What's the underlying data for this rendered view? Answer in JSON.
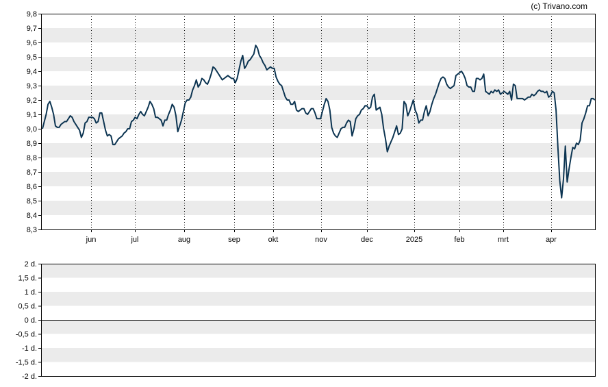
{
  "credit": "(c) Trivano.com",
  "chart_data": [
    {
      "type": "line",
      "ylim": [
        8.3,
        9.8
      ],
      "yticks": [
        "8,3",
        "8,4",
        "8,5",
        "8,6",
        "8,7",
        "8,8",
        "8,9",
        "9,0",
        "9,1",
        "9,2",
        "9,3",
        "9,4",
        "9,5",
        "9,6",
        "9,7",
        "9,8"
      ],
      "xticks": [
        "jun",
        "jul",
        "aug",
        "sep",
        "okt",
        "nov",
        "dec",
        "2025",
        "feb",
        "mrt",
        "apr"
      ],
      "grid": "alternating horizontal bands, dotted vertical lines",
      "color": "#0d3552",
      "values": [
        9.0,
        9.05,
        9.1,
        9.17,
        9.19,
        9.15,
        9.1,
        9.02,
        9.01,
        9.01,
        9.03,
        9.04,
        9.05,
        9.05,
        9.07,
        9.09,
        9.08,
        9.05,
        9.03,
        9.01,
        8.99,
        8.94,
        8.97,
        9.04,
        9.05,
        9.08,
        9.08,
        9.08,
        9.07,
        9.04,
        9.05,
        9.11,
        9.11,
        9.05,
        8.99,
        8.95,
        8.96,
        8.95,
        8.89,
        8.89,
        8.91,
        8.93,
        8.94,
        8.95,
        8.97,
        8.98,
        9.0,
        9.0,
        9.05,
        9.06,
        9.08,
        9.07,
        9.1,
        9.12,
        9.1,
        9.09,
        9.12,
        9.15,
        9.19,
        9.17,
        9.14,
        9.08,
        9.08,
        9.07,
        9.06,
        9.02,
        9.06,
        9.06,
        9.1,
        9.13,
        9.17,
        9.15,
        9.09,
        8.98,
        9.02,
        9.06,
        9.12,
        9.18,
        9.2,
        9.2,
        9.22,
        9.27,
        9.3,
        9.34,
        9.29,
        9.31,
        9.35,
        9.34,
        9.32,
        9.31,
        9.34,
        9.38,
        9.43,
        9.42,
        9.4,
        9.38,
        9.36,
        9.34,
        9.35,
        9.36,
        9.37,
        9.36,
        9.35,
        9.35,
        9.32,
        9.35,
        9.41,
        9.47,
        9.51,
        9.42,
        9.44,
        9.47,
        9.48,
        9.5,
        9.52,
        9.58,
        9.56,
        9.51,
        9.49,
        9.46,
        9.44,
        9.41,
        9.42,
        9.43,
        9.42,
        9.42,
        9.36,
        9.33,
        9.31,
        9.3,
        9.26,
        9.22,
        9.2,
        9.2,
        9.17,
        9.17,
        9.19,
        9.13,
        9.12,
        9.13,
        9.14,
        9.14,
        9.11,
        9.1,
        9.12,
        9.14,
        9.14,
        9.11,
        9.07,
        9.07,
        9.07,
        9.12,
        9.17,
        9.21,
        9.19,
        9.13,
        9.01,
        8.97,
        8.95,
        8.94,
        8.97,
        9.0,
        9.01,
        9.01,
        9.04,
        9.06,
        9.05,
        8.95,
        9.0,
        9.07,
        9.09,
        9.1,
        9.13,
        9.14,
        9.16,
        9.16,
        9.14,
        9.15,
        9.22,
        9.24,
        9.13,
        9.14,
        9.15,
        9.1,
        9.0,
        8.93,
        8.84,
        8.88,
        8.91,
        8.94,
        8.98,
        9.02,
        8.96,
        8.97,
        9.0,
        9.19,
        9.17,
        9.09,
        9.12,
        9.16,
        9.2,
        9.13,
        9.1,
        9.04,
        9.06,
        9.06,
        9.12,
        9.16,
        9.09,
        9.12,
        9.17,
        9.21,
        9.24,
        9.28,
        9.32,
        9.35,
        9.36,
        9.35,
        9.31,
        9.29,
        9.28,
        9.29,
        9.3,
        9.37,
        9.38,
        9.39,
        9.4,
        9.38,
        9.35,
        9.3,
        9.29,
        9.29,
        9.26,
        9.26,
        9.35,
        9.35,
        9.34,
        9.35,
        9.38,
        9.26,
        9.25,
        9.24,
        9.26,
        9.25,
        9.27,
        9.26,
        9.27,
        9.24,
        9.25,
        9.26,
        9.25,
        9.24,
        9.26,
        9.2,
        9.31,
        9.3,
        9.21,
        9.21,
        9.21,
        9.21,
        9.2,
        9.21,
        9.22,
        9.22,
        9.24,
        9.23,
        9.24,
        9.26,
        9.27,
        9.26,
        9.26,
        9.25,
        9.26,
        9.22,
        9.23,
        9.26,
        9.25,
        9.13,
        8.87,
        8.64,
        8.52,
        8.65,
        8.88,
        8.63,
        8.72,
        8.8,
        8.87,
        8.86,
        8.9,
        8.89,
        8.92,
        9.04,
        9.07,
        9.11,
        9.16,
        9.16,
        9.21,
        9.21,
        9.2
      ]
    },
    {
      "type": "line",
      "ylim": [
        -2,
        2
      ],
      "yticks": [
        "2 d.",
        "1,5 d.",
        "1 d.",
        "0,5 d.",
        "0 d.",
        "-0,5 d.",
        "-1 d.",
        "-1,5 d.",
        "-2 d."
      ],
      "zero_line": true,
      "values": []
    }
  ]
}
